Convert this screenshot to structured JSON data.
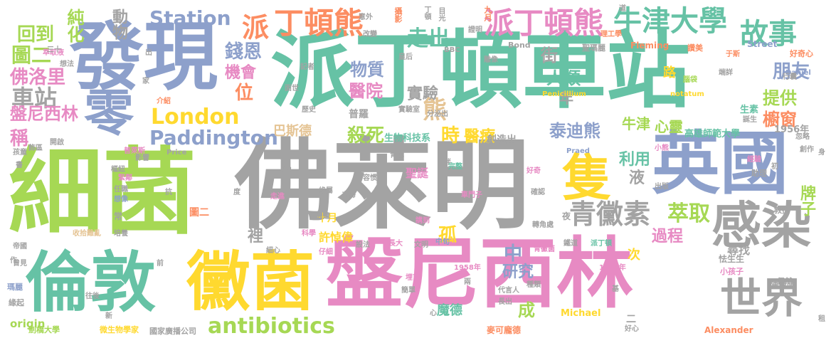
{
  "palette": {
    "gray": "#a3a3a3",
    "green": "#66c2a5",
    "lime": "#a6d854",
    "blue": "#8da0cb",
    "pink": "#e78ac3",
    "yellow": "#ffd92f",
    "orange": "#fc8d62",
    "tan": "#e5c494"
  },
  "words": [
    {
      "text": "派丁頓車站",
      "color": "green"
    },
    {
      "text": "佛萊明",
      "color": "gray"
    },
    {
      "text": "細菌",
      "color": "lime"
    },
    {
      "text": "發現",
      "color": "blue"
    },
    {
      "text": "盤尼西林",
      "color": "pink"
    },
    {
      "text": "倫敦",
      "color": "green"
    },
    {
      "text": "黴菌",
      "color": "yellow"
    },
    {
      "text": "英國",
      "color": "blue"
    },
    {
      "text": "感染",
      "color": "gray"
    },
    {
      "text": "零",
      "color": "blue"
    },
    {
      "text": "隻",
      "color": "yellow"
    },
    {
      "text": "世界",
      "color": "gray"
    },
    {
      "text": "丁頓熊",
      "color": "orange"
    },
    {
      "text": "派丁頓熊",
      "color": "pink"
    },
    {
      "text": "牛津大學",
      "color": "green"
    },
    {
      "text": "故事",
      "color": "green"
    },
    {
      "text": "派",
      "color": "orange"
    },
    {
      "text": "走出",
      "color": "green"
    },
    {
      "text": "Station",
      "color": "blue"
    },
    {
      "text": "動物",
      "color": "gray"
    },
    {
      "text": "純化",
      "color": "lime"
    },
    {
      "text": "回到",
      "color": "lime"
    },
    {
      "text": "London",
      "color": "yellow"
    },
    {
      "text": "Paddington",
      "color": "blue"
    },
    {
      "text": "antibiotics",
      "color": "lime"
    },
    {
      "text": "青黴素",
      "color": "gray"
    },
    {
      "text": "萃取",
      "color": "lime"
    },
    {
      "text": "車站",
      "color": "gray"
    },
    {
      "text": "佛洛里",
      "color": "pink"
    },
    {
      "text": "盤尼西林",
      "color": "pink"
    },
    {
      "text": "圖二",
      "color": "lime"
    },
    {
      "text": "錢恩",
      "color": "blue"
    },
    {
      "text": "機會",
      "color": "pink"
    },
    {
      "text": "位",
      "color": "orange"
    },
    {
      "text": "物質",
      "color": "blue"
    },
    {
      "text": "醫院",
      "color": "pink"
    },
    {
      "text": "實驗",
      "color": "gray"
    },
    {
      "text": "熊",
      "color": "tan"
    },
    {
      "text": "人類",
      "color": "green"
    },
    {
      "text": "年",
      "color": "gray"
    },
    {
      "text": "街",
      "color": "gray"
    },
    {
      "text": "朋友",
      "color": "blue"
    },
    {
      "text": "提供",
      "color": "lime"
    },
    {
      "text": "櫥窗",
      "color": "orange"
    },
    {
      "text": "泰迪熊",
      "color": "blue"
    },
    {
      "text": "殺死",
      "color": "lime"
    },
    {
      "text": "時",
      "color": "yellow"
    },
    {
      "text": "醫療",
      "color": "yellow"
    },
    {
      "text": "利用",
      "color": "green"
    },
    {
      "text": "牛津",
      "color": "lime"
    },
    {
      "text": "心靈",
      "color": "lime"
    },
    {
      "text": "稱",
      "color": "pink"
    },
    {
      "text": "過程",
      "color": "pink"
    },
    {
      "text": "牌子",
      "color": "lime"
    },
    {
      "text": "孤",
      "color": "yellow"
    },
    {
      "text": "中",
      "color": "blue"
    },
    {
      "text": "研究",
      "color": "blue"
    },
    {
      "text": "成",
      "color": "lime"
    },
    {
      "text": "裡",
      "color": "gray"
    },
    {
      "text": "液",
      "color": "gray"
    },
    {
      "text": "次",
      "color": "yellow"
    },
    {
      "text": "路",
      "color": "yellow"
    },
    {
      "text": "巴斯德",
      "color": "tan"
    },
    {
      "text": "高雄師範大學",
      "color": "green"
    },
    {
      "text": "生物科技系",
      "color": "green"
    },
    {
      "text": "創造出",
      "color": "gray"
    },
    {
      "text": "普羅",
      "color": "gray"
    },
    {
      "text": "1956年",
      "color": "gray"
    },
    {
      "text": "生素",
      "color": "green"
    },
    {
      "text": "許悼偉",
      "color": "yellow"
    },
    {
      "text": "十月",
      "color": "yellow"
    },
    {
      "text": "聖誕",
      "color": "pink"
    },
    {
      "text": "魔德",
      "color": "green"
    },
    {
      "text": "尋找",
      "color": "gray"
    },
    {
      "text": "陳煒昕",
      "color": "gray"
    },
    {
      "text": "Michael",
      "color": "yellow"
    },
    {
      "text": "Alexander",
      "color": "orange"
    },
    {
      "text": "麥可龐德",
      "color": "orange"
    },
    {
      "text": "微生物學家",
      "color": "yellow"
    },
    {
      "text": "國家廣播公司",
      "color": "gray"
    },
    {
      "text": "劍橋大學",
      "color": "lime"
    },
    {
      "text": "origin",
      "color": "lime"
    },
    {
      "text": "BBC",
      "color": "gray"
    },
    {
      "text": "Bond",
      "color": "gray"
    },
    {
      "text": "Fleming",
      "color": "orange"
    },
    {
      "text": "Street",
      "color": "blue"
    },
    {
      "text": "Daniel",
      "color": "blue"
    },
    {
      "text": "Penicillium",
      "color": "yellow"
    },
    {
      "text": "notatum",
      "color": "yellow"
    },
    {
      "text": "Price",
      "color": "gray"
    },
    {
      "text": "Praed",
      "color": "blue"
    },
    {
      "text": "1928年",
      "color": "pink"
    },
    {
      "text": "1958年",
      "color": "pink"
    },
    {
      "text": "九月",
      "color": "orange"
    },
    {
      "text": "攝影",
      "color": "orange"
    },
    {
      "text": "丁頓",
      "color": "gray"
    },
    {
      "text": "目光",
      "color": "gray"
    },
    {
      "text": "證明",
      "color": "gray"
    },
    {
      "text": "聖瑪麗",
      "color": "gray"
    },
    {
      "text": "理工學",
      "color": "orange"
    },
    {
      "text": "于斯",
      "color": "orange"
    },
    {
      "text": "好奇心",
      "color": "orange"
    },
    {
      "text": "端詳",
      "color": "gray"
    },
    {
      "text": "行囊",
      "color": "gray"
    },
    {
      "text": "讚美",
      "color": "orange"
    },
    {
      "text": "腦袋",
      "color": "lime"
    },
    {
      "text": "誕生",
      "color": "gray"
    },
    {
      "text": "忽略",
      "color": "gray"
    },
    {
      "text": "創作",
      "color": "gray"
    },
    {
      "text": "經驗",
      "color": "pink"
    },
    {
      "text": "助理",
      "color": "gray"
    },
    {
      "text": "教授",
      "color": "gray"
    },
    {
      "text": "偶然",
      "color": "gray"
    },
    {
      "text": "小孩子",
      "color": "pink"
    },
    {
      "text": "怯生生",
      "color": "gray"
    },
    {
      "text": "萃取液",
      "color": "pink"
    },
    {
      "text": "想法",
      "color": "gray"
    },
    {
      "text": "介紹",
      "color": "orange"
    },
    {
      "text": "孩童",
      "color": "gray"
    },
    {
      "text": "開啟",
      "color": "gray"
    },
    {
      "text": "飾區",
      "color": "gray"
    },
    {
      "text": "普萊斯",
      "color": "pink"
    },
    {
      "text": "樞紐",
      "color": "gray"
    },
    {
      "text": "緊鄰",
      "color": "pink"
    },
    {
      "text": "任職",
      "color": "gray"
    },
    {
      "text": "想像",
      "color": "blue"
    },
    {
      "text": "圖二",
      "color": "orange"
    },
    {
      "text": "常",
      "color": "gray"
    },
    {
      "text": "周遭",
      "color": "gray"
    },
    {
      "text": "收拾難亂",
      "color": "tan"
    },
    {
      "text": "培養",
      "color": "gray"
    },
    {
      "text": "帝國",
      "color": "gray"
    },
    {
      "text": "曾見",
      "color": "gray"
    },
    {
      "text": "瑪麗",
      "color": "blue"
    },
    {
      "text": "緣起",
      "color": "gray"
    },
    {
      "text": "往後",
      "color": "gray"
    },
    {
      "text": "科學",
      "color": "pink"
    },
    {
      "text": "設法",
      "color": "gray"
    },
    {
      "text": "長大",
      "color": "pink"
    },
    {
      "text": "文明",
      "color": "gray"
    },
    {
      "text": "仔細",
      "color": "pink"
    },
    {
      "text": "中旬",
      "color": "blue"
    },
    {
      "text": "青黴菌",
      "color": "pink"
    },
    {
      "text": "鐵道",
      "color": "gray"
    },
    {
      "text": "派丁頓",
      "color": "green"
    },
    {
      "text": "種類",
      "color": "gray"
    },
    {
      "text": "代言人",
      "color": "gray"
    },
    {
      "text": "長出",
      "color": "gray"
    },
    {
      "text": "簡單",
      "color": "gray"
    },
    {
      "text": "埋首",
      "color": "pink"
    },
    {
      "text": "轉角處",
      "color": "gray"
    },
    {
      "text": "講到",
      "color": "pink"
    },
    {
      "text": "車門子",
      "color": "pink"
    },
    {
      "text": "確認",
      "color": "gray"
    },
    {
      "text": "夫婦",
      "color": "gray"
    },
    {
      "text": "好奇",
      "color": "pink"
    },
    {
      "text": "容惯",
      "color": "gray"
    },
    {
      "text": "完整",
      "color": "green"
    },
    {
      "text": "綠屬",
      "color": "gray"
    },
    {
      "text": "走進",
      "color": "pink"
    },
    {
      "text": "書",
      "color": "gray"
    },
    {
      "text": "皇后",
      "color": "gray"
    },
    {
      "text": "改變",
      "color": "gray"
    },
    {
      "text": "意外",
      "color": "gray"
    },
    {
      "text": "記者",
      "color": "gray"
    },
    {
      "text": "面世",
      "color": "gray"
    },
    {
      "text": "歷史",
      "color": "gray"
    },
    {
      "text": "實驗室",
      "color": "gray"
    },
    {
      "text": "分泌出",
      "color": "gray"
    },
    {
      "text": "雕像",
      "color": "gray"
    },
    {
      "text": "出版",
      "color": "gray"
    },
    {
      "text": "小熊",
      "color": "pink"
    },
    {
      "text": "影響",
      "color": "gray"
    },
    {
      "text": "句",
      "color": "gray"
    },
    {
      "text": "抗",
      "color": "gray"
    },
    {
      "text": "家",
      "color": "gray"
    },
    {
      "text": "度",
      "color": "gray"
    },
    {
      "text": "前",
      "color": "gray"
    },
    {
      "text": "新",
      "color": "gray"
    },
    {
      "text": "伴",
      "color": "gray"
    },
    {
      "text": "夜",
      "color": "gray"
    },
    {
      "text": "基",
      "color": "gray"
    },
    {
      "text": "心",
      "color": "gray"
    },
    {
      "text": "道",
      "color": "gray"
    },
    {
      "text": "出",
      "color": "gray"
    },
    {
      "text": "身",
      "color": "gray"
    },
    {
      "text": "初",
      "color": "gray"
    },
    {
      "text": "作",
      "color": "gray"
    },
    {
      "text": "租",
      "color": "gray"
    },
    {
      "text": "好心",
      "color": "gray"
    },
    {
      "text": "三十",
      "color": "gray"
    },
    {
      "text": "青色",
      "color": "gray"
    },
    {
      "text": "細心",
      "color": "gray"
    },
    {
      "text": "兩",
      "color": "gray"
    },
    {
      "text": "二",
      "color": "gray"
    }
  ]
}
